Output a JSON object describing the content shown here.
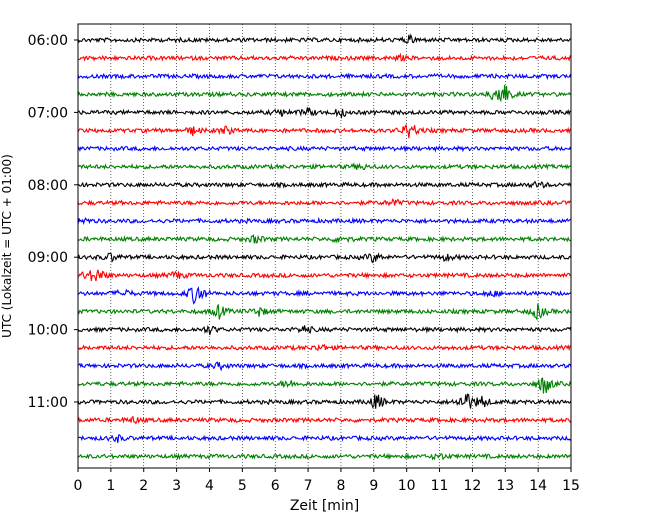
{
  "chart_data": {
    "type": "line",
    "title": "",
    "xlabel": "Zeit  [min]",
    "ylabel": "UTC (Lokalzeit = UTC + 01:00)",
    "xlim": [
      0,
      15
    ],
    "x_ticks": [
      "0",
      "1",
      "2",
      "3",
      "4",
      "5",
      "6",
      "7",
      "8",
      "9",
      "10",
      "11",
      "12",
      "13",
      "14",
      "15"
    ],
    "y_ticks": [
      "06:00",
      "07:00",
      "08:00",
      "09:00",
      "10:00",
      "11:00"
    ],
    "grid": "vertical dotted",
    "trace_interval_minutes": 15,
    "colors": {
      "black": "#000000",
      "red": "#ff0000",
      "blue": "#0000ff",
      "green": "#008000"
    },
    "series": [
      {
        "start": "06:00",
        "color": "#000000",
        "events": [
          [
            10.1,
            4
          ]
        ]
      },
      {
        "start": "06:15",
        "color": "#ff0000",
        "events": [
          [
            9.8,
            2
          ]
        ]
      },
      {
        "start": "06:30",
        "color": "#0000ff",
        "events": []
      },
      {
        "start": "06:45",
        "color": "#008000",
        "events": [
          [
            12.8,
            14
          ],
          [
            13.0,
            6
          ]
        ]
      },
      {
        "start": "07:00",
        "color": "#000000",
        "events": [
          [
            7.0,
            4
          ],
          [
            8.0,
            4
          ],
          [
            6.2,
            3
          ]
        ]
      },
      {
        "start": "07:15",
        "color": "#ff0000",
        "events": [
          [
            10.1,
            10
          ],
          [
            3.5,
            4
          ],
          [
            4.5,
            4
          ]
        ]
      },
      {
        "start": "07:30",
        "color": "#0000ff",
        "events": []
      },
      {
        "start": "07:45",
        "color": "#008000",
        "events": [
          [
            8.6,
            3
          ]
        ]
      },
      {
        "start": "08:00",
        "color": "#000000",
        "events": [
          [
            14.0,
            3
          ]
        ]
      },
      {
        "start": "08:15",
        "color": "#ff0000",
        "events": [
          [
            9.6,
            3
          ]
        ]
      },
      {
        "start": "08:30",
        "color": "#0000ff",
        "events": [
          [
            0.1,
            4
          ]
        ]
      },
      {
        "start": "08:45",
        "color": "#008000",
        "events": [
          [
            5.4,
            4
          ],
          [
            8.0,
            4
          ]
        ]
      },
      {
        "start": "09:00",
        "color": "#000000",
        "events": [
          [
            9.0,
            5
          ],
          [
            1.0,
            4
          ],
          [
            11.2,
            3
          ]
        ]
      },
      {
        "start": "09:15",
        "color": "#ff0000",
        "events": [
          [
            0.6,
            7
          ],
          [
            0.3,
            4
          ],
          [
            3.0,
            4
          ]
        ]
      },
      {
        "start": "09:30",
        "color": "#0000ff",
        "events": [
          [
            3.6,
            14
          ],
          [
            1.4,
            4
          ],
          [
            12.6,
            3
          ]
        ]
      },
      {
        "start": "09:45",
        "color": "#008000",
        "events": [
          [
            4.3,
            7
          ],
          [
            14.0,
            8
          ],
          [
            5.5,
            5
          ]
        ]
      },
      {
        "start": "10:00",
        "color": "#000000",
        "events": [
          [
            4.0,
            4
          ],
          [
            6.9,
            4
          ]
        ]
      },
      {
        "start": "10:15",
        "color": "#ff0000",
        "events": [
          [
            7.4,
            3
          ]
        ]
      },
      {
        "start": "10:30",
        "color": "#0000ff",
        "events": [
          [
            4.3,
            3
          ]
        ]
      },
      {
        "start": "10:45",
        "color": "#008000",
        "events": [
          [
            14.2,
            12
          ],
          [
            6.4,
            4
          ]
        ]
      },
      {
        "start": "11:00",
        "color": "#000000",
        "events": [
          [
            11.8,
            12
          ],
          [
            9.1,
            9
          ],
          [
            12.3,
            6
          ]
        ]
      },
      {
        "start": "11:15",
        "color": "#ff0000",
        "events": [
          [
            1.7,
            3
          ]
        ]
      },
      {
        "start": "11:30",
        "color": "#0000ff",
        "events": [
          [
            1.2,
            3
          ]
        ]
      },
      {
        "start": "11:45",
        "color": "#008000",
        "events": [
          [
            11.0,
            3
          ]
        ]
      }
    ]
  }
}
